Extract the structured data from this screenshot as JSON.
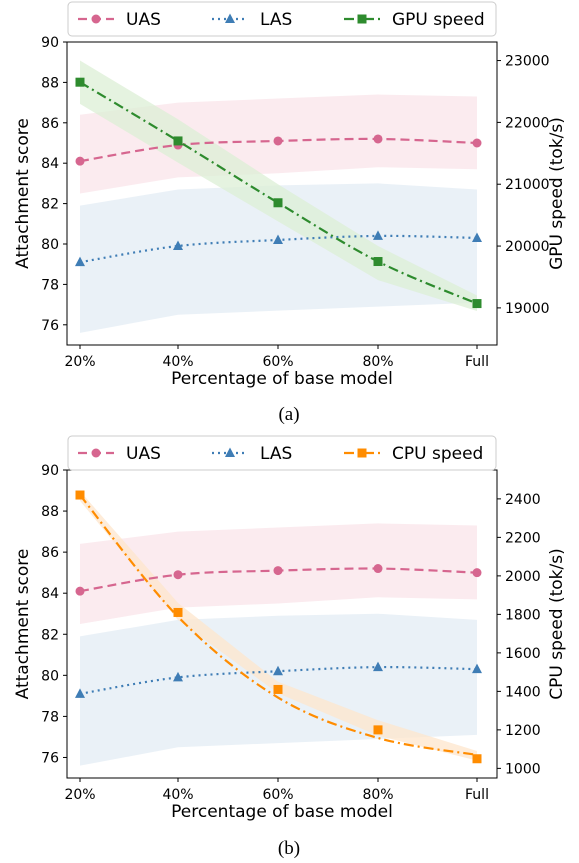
{
  "chart_data": [
    {
      "type": "line",
      "caption": "(a)",
      "categories": [
        "20%",
        "40%",
        "60%",
        "80%",
        "Full"
      ],
      "xlabel": "Percentage of base model",
      "ylabel": "Attachment score",
      "ylabel_right": "GPU speed (tok/s)",
      "ylim": [
        75,
        90
      ],
      "yticks": [
        76,
        78,
        80,
        82,
        84,
        86,
        88,
        90
      ],
      "ylim_right": [
        18400,
        23300
      ],
      "yticks_right": [
        19000,
        20000,
        21000,
        22000,
        23000
      ],
      "legend_position": "top",
      "series": [
        {
          "name": "UAS",
          "axis": "left",
          "style": "dashed",
          "marker": "circle",
          "color": "#d6668f",
          "band_color": "#f9e4ea",
          "values": [
            84.1,
            84.9,
            85.1,
            85.2,
            85.0
          ],
          "band_upper": [
            86.4,
            87.0,
            87.2,
            87.4,
            87.3
          ],
          "band_lower": [
            82.5,
            83.3,
            83.5,
            83.8,
            83.7
          ]
        },
        {
          "name": "LAS",
          "axis": "left",
          "style": "dotted",
          "marker": "triangle",
          "color": "#3f7db5",
          "band_color": "#e3ecf4",
          "values": [
            79.1,
            79.9,
            80.2,
            80.4,
            80.3
          ],
          "band_upper": [
            81.9,
            82.7,
            82.9,
            83.0,
            82.7
          ],
          "band_lower": [
            75.6,
            76.5,
            76.7,
            76.9,
            77.1
          ]
        },
        {
          "name": "GPU speed",
          "axis": "right",
          "style": "dashdot",
          "marker": "square",
          "color": "#2e8b2e",
          "band_color": "#dcefd6",
          "values": [
            22650,
            21700,
            20700,
            19750,
            19070
          ],
          "band_upper": [
            23000,
            22050,
            21000,
            20000,
            19200
          ],
          "band_lower": [
            22300,
            21350,
            20400,
            19450,
            18950
          ]
        }
      ]
    },
    {
      "type": "line",
      "caption": "(b)",
      "categories": [
        "20%",
        "40%",
        "60%",
        "80%",
        "Full"
      ],
      "xlabel": "Percentage of base model",
      "ylabel": "Attachment score",
      "ylabel_right": "CPU speed (tok/s)",
      "ylim": [
        75,
        90
      ],
      "yticks": [
        76,
        78,
        80,
        82,
        84,
        86,
        88,
        90
      ],
      "ylim_right": [
        950,
        2550
      ],
      "yticks_right": [
        1000,
        1200,
        1400,
        1600,
        1800,
        2000,
        2200,
        2400
      ],
      "legend_position": "top",
      "series": [
        {
          "name": "UAS",
          "axis": "left",
          "style": "dashed",
          "marker": "circle",
          "color": "#d6668f",
          "band_color": "#f9e4ea",
          "values": [
            84.1,
            84.9,
            85.1,
            85.2,
            85.0
          ],
          "band_upper": [
            86.4,
            87.0,
            87.2,
            87.4,
            87.3
          ],
          "band_lower": [
            82.5,
            83.3,
            83.5,
            83.8,
            83.7
          ]
        },
        {
          "name": "LAS",
          "axis": "left",
          "style": "dotted",
          "marker": "triangle",
          "color": "#3f7db5",
          "band_color": "#e3ecf4",
          "values": [
            79.1,
            79.9,
            80.2,
            80.4,
            80.3
          ],
          "band_upper": [
            81.9,
            82.7,
            82.9,
            83.0,
            82.7
          ],
          "band_lower": [
            75.6,
            76.5,
            76.7,
            76.9,
            77.1
          ]
        },
        {
          "name": "CPU speed",
          "axis": "right",
          "style": "dashdot",
          "marker": "square",
          "color": "#ff8c00",
          "band_color": "#fde6cc",
          "values": [
            2420,
            1810,
            1410,
            1200,
            1050
          ],
          "band_upper": [
            2440,
            1860,
            1450,
            1250,
            1090
          ],
          "band_lower": [
            2390,
            1770,
            1390,
            1170,
            1040
          ],
          "fit_line": [
            2420,
            1788,
            1368,
            1158,
            1070
          ]
        }
      ]
    }
  ]
}
